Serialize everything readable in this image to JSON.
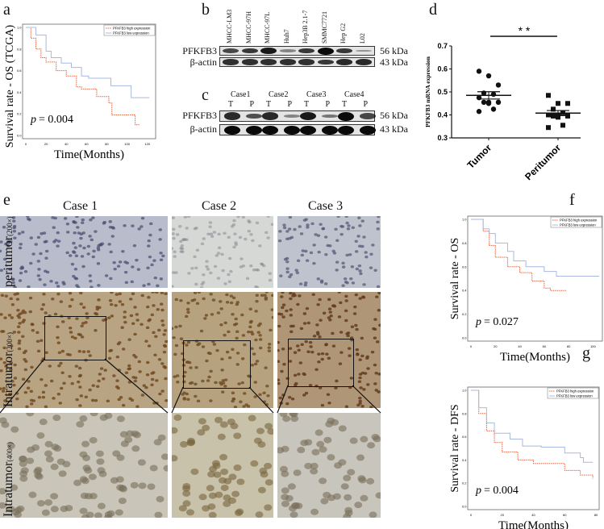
{
  "panels": {
    "a": "a",
    "b": "b",
    "c": "c",
    "d": "d",
    "e": "e",
    "f": "f",
    "g": "g"
  },
  "blot_b": {
    "lanes": [
      "MHCC-LM3",
      "MHCC-97H",
      "MHCC-97L",
      "Huh7",
      "Hep3B 2.1-7",
      "SMMC7721",
      "Hep G2",
      "L02"
    ],
    "rows": [
      {
        "name": "PFKFB3",
        "kda": "56 kDa",
        "intensity": [
          0.6,
          0.7,
          0.9,
          0.2,
          0.7,
          1.0,
          0.7,
          0.1
        ]
      },
      {
        "name": "β-actin",
        "kda": "43 kDa",
        "intensity": [
          0.75,
          0.75,
          0.75,
          0.75,
          0.75,
          0.7,
          0.8,
          0.8
        ]
      }
    ]
  },
  "blot_c": {
    "cases": [
      "Case1",
      "Case2",
      "Case3",
      "Case4"
    ],
    "lane_labels": [
      "T",
      "P",
      "T",
      "P",
      "T",
      "P",
      "T",
      "P"
    ],
    "rows": [
      {
        "name": "PFKFB3",
        "kda": "56 kDa",
        "intensity": [
          0.8,
          0.55,
          0.8,
          0.2,
          0.9,
          0.3,
          1.0,
          0.6
        ]
      },
      {
        "name": "β-actin",
        "kda": "43 kDa",
        "intensity": [
          1,
          1,
          1,
          1,
          1,
          1,
          1,
          1
        ]
      }
    ]
  },
  "ihc": {
    "cases": [
      "Case 1",
      "Case 2",
      "Case 3"
    ],
    "rows": [
      {
        "label": "peritumor",
        "mag": "(200×)"
      },
      {
        "label": "Intratumor",
        "mag": "(200×)"
      },
      {
        "label": "Intratumor",
        "mag": "(400×)"
      }
    ]
  },
  "chart_data": [
    {
      "id": "a",
      "type": "line",
      "title": "",
      "xlabel": "Time(Months)",
      "ylabel": "Survival rate - OS (TCGA)",
      "xlim": [
        0,
        125
      ],
      "ylim": [
        0,
        1
      ],
      "xticks": [
        0,
        20,
        40,
        60,
        80,
        100,
        120
      ],
      "yticks": [
        "0.0",
        "0.2",
        "0.4",
        "0.6",
        "0.8",
        "1.0"
      ],
      "annotation": "= 0.004",
      "annotation_p": "p",
      "legend": "top-right",
      "series": [
        {
          "name": "PFKFB3 high expression",
          "color": "#e8603a",
          "points": [
            [
              0,
              1
            ],
            [
              5,
              0.9
            ],
            [
              10,
              0.8
            ],
            [
              15,
              0.72
            ],
            [
              20,
              0.68
            ],
            [
              30,
              0.6
            ],
            [
              40,
              0.55
            ],
            [
              50,
              0.45
            ],
            [
              55,
              0.43
            ],
            [
              70,
              0.36
            ],
            [
              82,
              0.3
            ],
            [
              85,
              0.19
            ],
            [
              108,
              0.19
            ],
            [
              108,
              0.1
            ],
            [
              112,
              0.1
            ]
          ]
        },
        {
          "name": "PFKFB3  low expression",
          "color": "#a9b8e0",
          "points": [
            [
              0,
              1
            ],
            [
              10,
              0.93
            ],
            [
              20,
              0.78
            ],
            [
              25,
              0.72
            ],
            [
              35,
              0.67
            ],
            [
              45,
              0.63
            ],
            [
              55,
              0.55
            ],
            [
              62,
              0.53
            ],
            [
              84,
              0.53
            ],
            [
              84,
              0.46
            ],
            [
              104,
              0.46
            ],
            [
              104,
              0.35
            ],
            [
              122,
              0.35
            ]
          ]
        }
      ]
    },
    {
      "id": "d",
      "type": "scatter",
      "ylabel": "PFKFB3 mRNA expression",
      "ylim": [
        0.3,
        0.7
      ],
      "yticks": [
        "0.3",
        "0.4",
        "0.5",
        "0.6",
        "0.7"
      ],
      "significance": "* *",
      "categories": [
        "Tumor",
        "Peritumor"
      ],
      "series": [
        {
          "name": "Tumor",
          "values": [
            0.59,
            0.57,
            0.53,
            0.495,
            0.49,
            0.475,
            0.455,
            0.455,
            0.455,
            0.425,
            0.415,
            0.45
          ],
          "mean": 0.485,
          "sem": 0.016
        },
        {
          "name": "Peritumor",
          "values": [
            0.485,
            0.45,
            0.45,
            0.425,
            0.41,
            0.4,
            0.4,
            0.395,
            0.395,
            0.355,
            0.345,
            0.39
          ],
          "mean": 0.408,
          "sem": 0.011
        }
      ]
    },
    {
      "id": "f",
      "type": "line",
      "xlabel": "Time(Months)",
      "ylabel": "Survival rate - OS",
      "xlim": [
        0,
        105
      ],
      "ylim": [
        0,
        1
      ],
      "xticks": [
        0,
        20,
        40,
        60,
        80,
        100
      ],
      "yticks": [
        "0.0",
        "0.2",
        "0.4",
        "0.6",
        "0.8",
        "1.0"
      ],
      "annotation": "= 0.027",
      "annotation_p": "p",
      "legend": "top-right",
      "series": [
        {
          "name": "PFKFB3 high expression",
          "color": "#e8603a",
          "points": [
            [
              0,
              1
            ],
            [
              10,
              0.9
            ],
            [
              15,
              0.78
            ],
            [
              20,
              0.68
            ],
            [
              30,
              0.6
            ],
            [
              40,
              0.55
            ],
            [
              50,
              0.48
            ],
            [
              60,
              0.42
            ],
            [
              65,
              0.4
            ],
            [
              78,
              0.4
            ]
          ]
        },
        {
          "name": "PFKFB3  low expression",
          "color": "#a9b8e0",
          "points": [
            [
              0,
              1
            ],
            [
              10,
              0.92
            ],
            [
              15,
              0.88
            ],
            [
              20,
              0.8
            ],
            [
              30,
              0.73
            ],
            [
              35,
              0.65
            ],
            [
              45,
              0.6
            ],
            [
              60,
              0.56
            ],
            [
              70,
              0.52
            ],
            [
              105,
              0.52
            ]
          ]
        }
      ]
    },
    {
      "id": "g",
      "type": "line",
      "xlabel": "Time(Months)",
      "ylabel": "Survival rate - DFS",
      "xlim": [
        0,
        80
      ],
      "ylim": [
        0,
        1
      ],
      "xticks": [
        0,
        20,
        40,
        60,
        80
      ],
      "yticks": [
        "0.0",
        "0.2",
        "0.4",
        "0.6",
        "0.8",
        "1.0"
      ],
      "annotation": "= 0.004",
      "annotation_p": "p",
      "legend": "top-right",
      "series": [
        {
          "name": "PFKFB3 high expression",
          "color": "#e8603a",
          "points": [
            [
              0,
              1
            ],
            [
              5,
              0.8
            ],
            [
              10,
              0.65
            ],
            [
              15,
              0.55
            ],
            [
              20,
              0.47
            ],
            [
              30,
              0.4
            ],
            [
              40,
              0.37
            ],
            [
              60,
              0.31
            ],
            [
              70,
              0.27
            ],
            [
              78,
              0.24
            ]
          ]
        },
        {
          "name": "PFKFB3  low expression",
          "color": "#a9b8e0",
          "points": [
            [
              0,
              1
            ],
            [
              5,
              0.85
            ],
            [
              10,
              0.72
            ],
            [
              15,
              0.63
            ],
            [
              25,
              0.58
            ],
            [
              33,
              0.52
            ],
            [
              45,
              0.51
            ],
            [
              60,
              0.46
            ],
            [
              70,
              0.42
            ],
            [
              72,
              0.38
            ],
            [
              78,
              0.38
            ]
          ]
        }
      ]
    }
  ]
}
